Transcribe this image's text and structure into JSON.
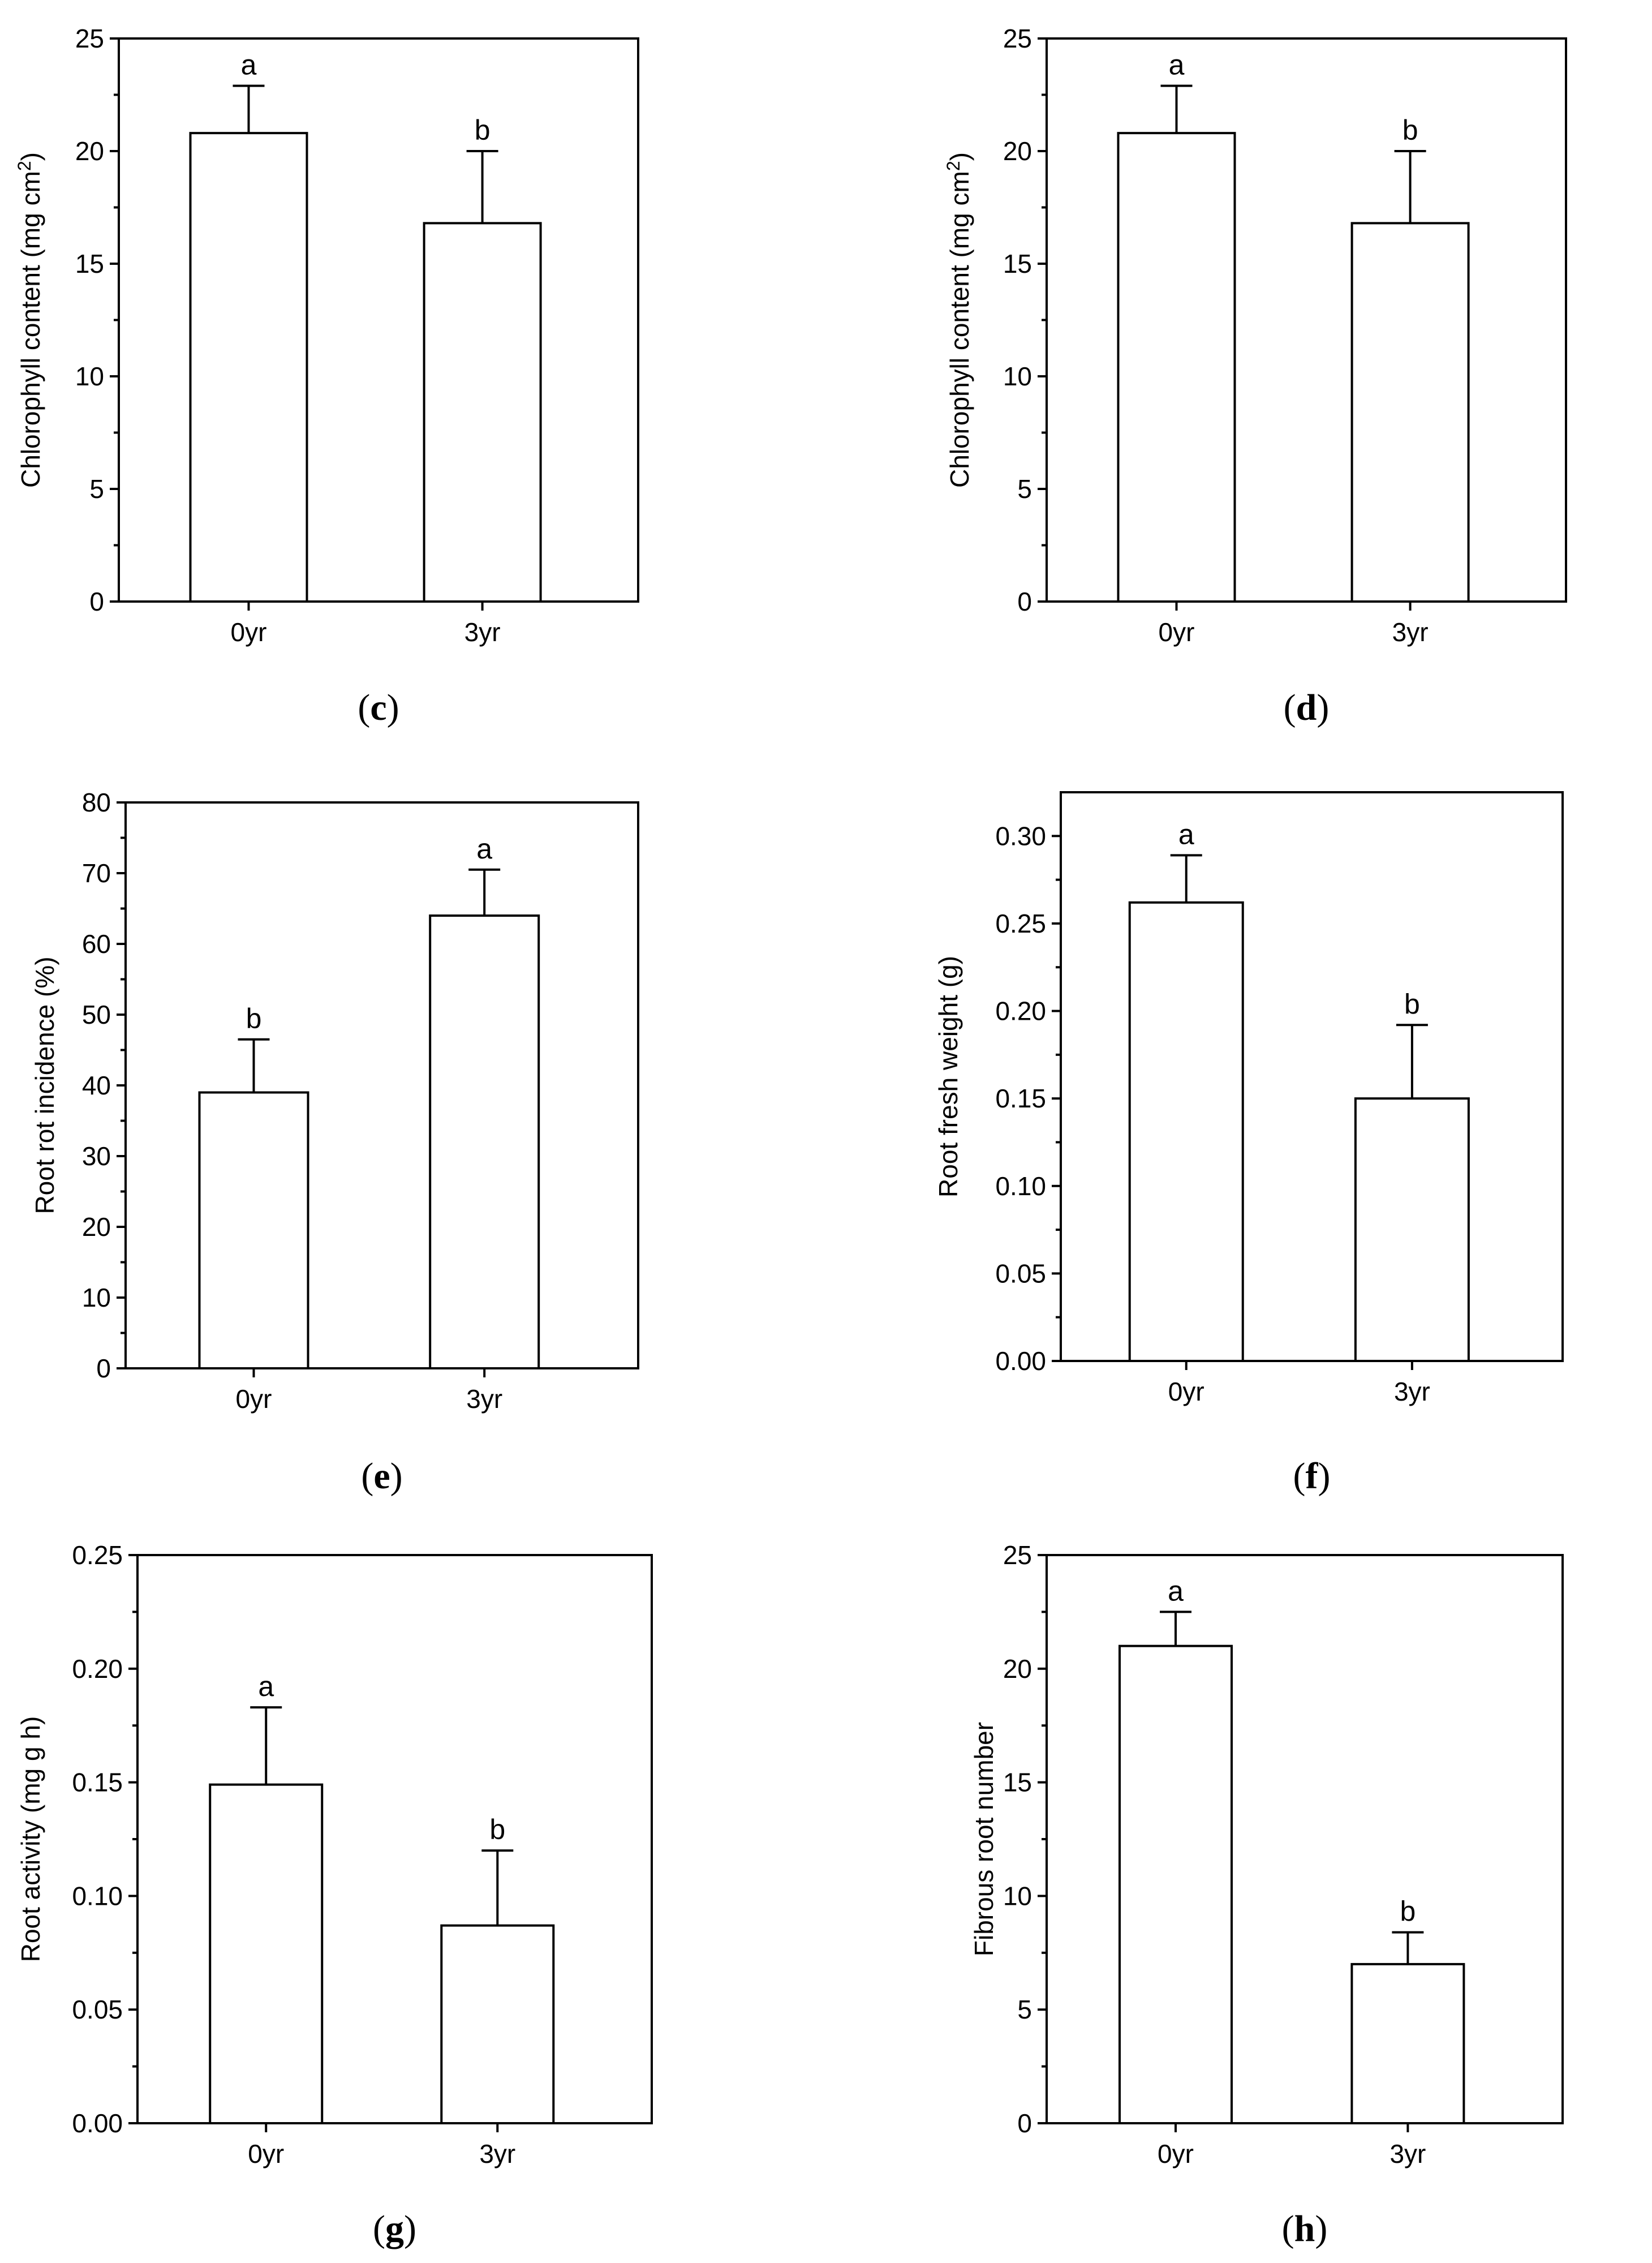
{
  "chart_data": [
    {
      "id": "c",
      "type": "bar",
      "panel_label": "c",
      "title": "",
      "xlabel": "",
      "ylabel": "Chlorophyll content (mg cm",
      "ylabel_sup": "2",
      "ylabel_tail": ")",
      "categories": [
        "0yr",
        "3yr"
      ],
      "values": [
        20.8,
        16.8
      ],
      "errors": [
        2.1,
        3.2
      ],
      "significance": [
        "a",
        "b"
      ],
      "ylim": [
        0,
        25
      ],
      "yticks": [
        "0",
        "5",
        "10",
        "15",
        "20",
        "25"
      ]
    },
    {
      "id": "d",
      "type": "bar",
      "panel_label": "d",
      "title": "",
      "xlabel": "",
      "ylabel": "Chlorophyll content (mg cm",
      "ylabel_sup": "2",
      "ylabel_tail": ")",
      "categories": [
        "0yr",
        "3yr"
      ],
      "values": [
        20.8,
        16.8
      ],
      "errors": [
        2.1,
        3.2
      ],
      "significance": [
        "a",
        "b"
      ],
      "ylim": [
        0,
        25
      ],
      "yticks": [
        "0",
        "5",
        "10",
        "15",
        "20",
        "25"
      ]
    },
    {
      "id": "e",
      "type": "bar",
      "panel_label": "e",
      "title": "",
      "xlabel": "",
      "ylabel": "Root rot incidence (%)",
      "ylabel_sup": "",
      "ylabel_tail": "",
      "categories": [
        "0yr",
        "3yr"
      ],
      "values": [
        39,
        64
      ],
      "errors": [
        7.5,
        6.5
      ],
      "significance": [
        "b",
        "a"
      ],
      "ylim": [
        0,
        80
      ],
      "yticks": [
        "0",
        "10",
        "20",
        "30",
        "40",
        "50",
        "60",
        "70",
        "80"
      ]
    },
    {
      "id": "f",
      "type": "bar",
      "panel_label": "f",
      "title": "",
      "xlabel": "",
      "ylabel": "Root fresh weight (g)",
      "ylabel_sup": "",
      "ylabel_tail": "",
      "categories": [
        "0yr",
        "3yr"
      ],
      "values": [
        0.262,
        0.15
      ],
      "errors": [
        0.027,
        0.042
      ],
      "significance": [
        "a",
        "b"
      ],
      "ylim": [
        0,
        0.325
      ],
      "yticks": [
        "0.00",
        "0.05",
        "0.10",
        "0.15",
        "0.20",
        "0.25",
        "0.30"
      ]
    },
    {
      "id": "g",
      "type": "bar",
      "panel_label": "g",
      "title": "",
      "xlabel": "",
      "ylabel": "Root activity (mg g h)",
      "ylabel_sup": "",
      "ylabel_tail": "",
      "categories": [
        "0yr",
        "3yr"
      ],
      "values": [
        0.149,
        0.087
      ],
      "errors": [
        0.034,
        0.033
      ],
      "significance": [
        "a",
        "b"
      ],
      "ylim": [
        0,
        0.25
      ],
      "yticks": [
        "0.00",
        "0.05",
        "0.10",
        "0.15",
        "0.20",
        "0.25"
      ]
    },
    {
      "id": "h",
      "type": "bar",
      "panel_label": "h",
      "title": "",
      "xlabel": "",
      "ylabel": "Fibrous root number",
      "ylabel_sup": "",
      "ylabel_tail": "",
      "categories": [
        "0yr",
        "3yr"
      ],
      "values": [
        21,
        7
      ],
      "errors": [
        1.5,
        1.4
      ],
      "significance": [
        "a",
        "b"
      ],
      "ylim": [
        0,
        25
      ],
      "yticks": [
        "0",
        "5",
        "10",
        "15",
        "20",
        "25"
      ]
    }
  ]
}
